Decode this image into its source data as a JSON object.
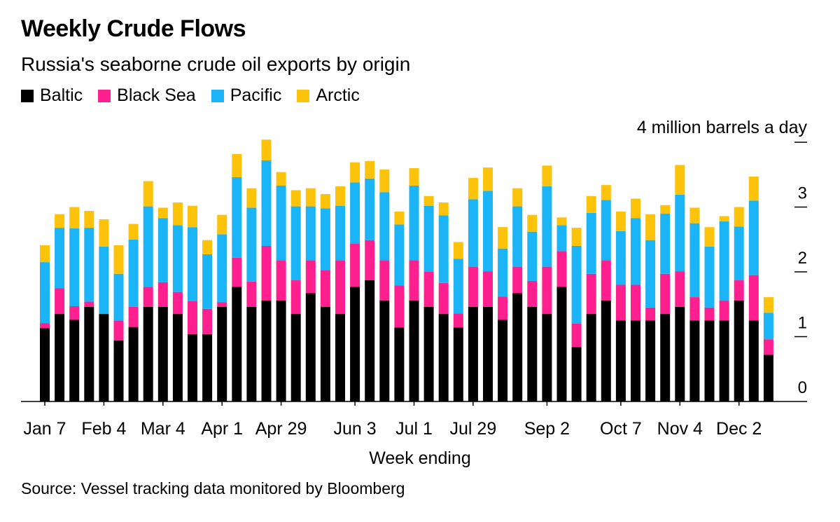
{
  "header": {
    "title": "Weekly Crude Flows",
    "subtitle": "Russia's seaborne crude oil exports by origin"
  },
  "colors": {
    "baltic": "#000000",
    "black_sea": "#ff1f8e",
    "pacific": "#1bb5f7",
    "arctic": "#fdc20a",
    "axis": "#000000"
  },
  "footer": {
    "source": "Source: Vessel tracking data monitored by Bloomberg"
  },
  "chart_data": {
    "type": "bar",
    "stacked": true,
    "title": "Weekly Crude Flows",
    "subtitle": "Russia's seaborne crude oil exports by origin",
    "xlabel": "Week ending",
    "ylabel": "",
    "unit_label": "4 million barrels a day",
    "ylim": [
      0,
      4
    ],
    "yticks": [
      0,
      1,
      2,
      3,
      4
    ],
    "ytick_labels": [
      "0",
      "1",
      "2",
      "3",
      ""
    ],
    "x_tick_labels": [
      {
        "index": 0,
        "label": "Jan 7"
      },
      {
        "index": 4,
        "label": "Feb 4"
      },
      {
        "index": 8,
        "label": "Mar 4"
      },
      {
        "index": 12,
        "label": "Apr 1"
      },
      {
        "index": 16,
        "label": "Apr 29"
      },
      {
        "index": 21,
        "label": "Jun 3"
      },
      {
        "index": 25,
        "label": "Jul 1"
      },
      {
        "index": 29,
        "label": "Jul 29"
      },
      {
        "index": 34,
        "label": "Sep 2"
      },
      {
        "index": 39,
        "label": "Oct 7"
      },
      {
        "index": 43,
        "label": "Nov 4"
      },
      {
        "index": 47,
        "label": "Dec 2"
      }
    ],
    "legend_position": "top-left",
    "series": [
      {
        "name": "Baltic",
        "color": "#000000",
        "values": [
          1.13,
          1.35,
          1.26,
          1.46,
          1.35,
          0.94,
          1.15,
          1.46,
          1.46,
          1.35,
          1.04,
          1.04,
          1.46,
          1.77,
          1.46,
          1.56,
          1.56,
          1.35,
          1.67,
          1.46,
          1.35,
          1.77,
          1.87,
          1.56,
          1.14,
          1.56,
          1.46,
          1.35,
          1.14,
          1.46,
          1.46,
          1.26,
          1.67,
          1.46,
          1.35,
          1.77,
          0.84,
          1.35,
          1.56,
          1.25,
          1.25,
          1.25,
          1.35,
          1.46,
          1.25,
          1.25,
          1.25,
          1.56,
          1.25,
          0.72
        ]
      },
      {
        "name": "Black Sea",
        "color": "#ff1f8e",
        "values": [
          0.08,
          0.4,
          0.21,
          0.08,
          0.0,
          0.31,
          0.31,
          0.31,
          0.38,
          0.34,
          0.51,
          0.39,
          0.07,
          0.45,
          0.39,
          0.84,
          0.62,
          0.52,
          0.51,
          0.57,
          0.83,
          0.67,
          0.62,
          0.62,
          0.65,
          0.62,
          0.54,
          0.48,
          0.22,
          0.62,
          0.55,
          0.36,
          0.41,
          0.4,
          0.73,
          0.55,
          0.36,
          0.62,
          0.62,
          0.55,
          0.55,
          0.2,
          0.62,
          0.55,
          0.36,
          0.2,
          0.31,
          0.31,
          0.7,
          0.24
        ]
      },
      {
        "name": "Pacific",
        "color": "#1bb5f7",
        "values": [
          0.94,
          0.93,
          1.2,
          1.14,
          1.04,
          0.72,
          1.04,
          1.24,
          0.99,
          1.03,
          1.14,
          0.84,
          1.05,
          1.24,
          1.14,
          1.32,
          1.15,
          1.14,
          0.83,
          0.95,
          0.84,
          0.94,
          0.95,
          1.05,
          0.94,
          1.15,
          1.02,
          1.04,
          0.84,
          1.04,
          1.24,
          0.74,
          0.93,
          0.76,
          1.24,
          0.4,
          1.2,
          0.94,
          0.93,
          0.83,
          1.03,
          1.04,
          0.93,
          1.18,
          1.14,
          0.94,
          1.22,
          0.83,
          1.15,
          0.41
        ]
      },
      {
        "name": "Arctic",
        "color": "#fdc20a",
        "values": [
          0.26,
          0.21,
          0.33,
          0.26,
          0.42,
          0.44,
          0.24,
          0.39,
          0.16,
          0.35,
          0.33,
          0.22,
          0.3,
          0.36,
          0.3,
          0.32,
          0.21,
          0.25,
          0.28,
          0.22,
          0.3,
          0.31,
          0.27,
          0.35,
          0.2,
          0.27,
          0.15,
          0.2,
          0.26,
          0.33,
          0.36,
          0.33,
          0.28,
          0.26,
          0.32,
          0.12,
          0.28,
          0.26,
          0.23,
          0.3,
          0.3,
          0.4,
          0.13,
          0.46,
          0.24,
          0.3,
          0.08,
          0.3,
          0.37,
          0.24
        ]
      }
    ]
  }
}
